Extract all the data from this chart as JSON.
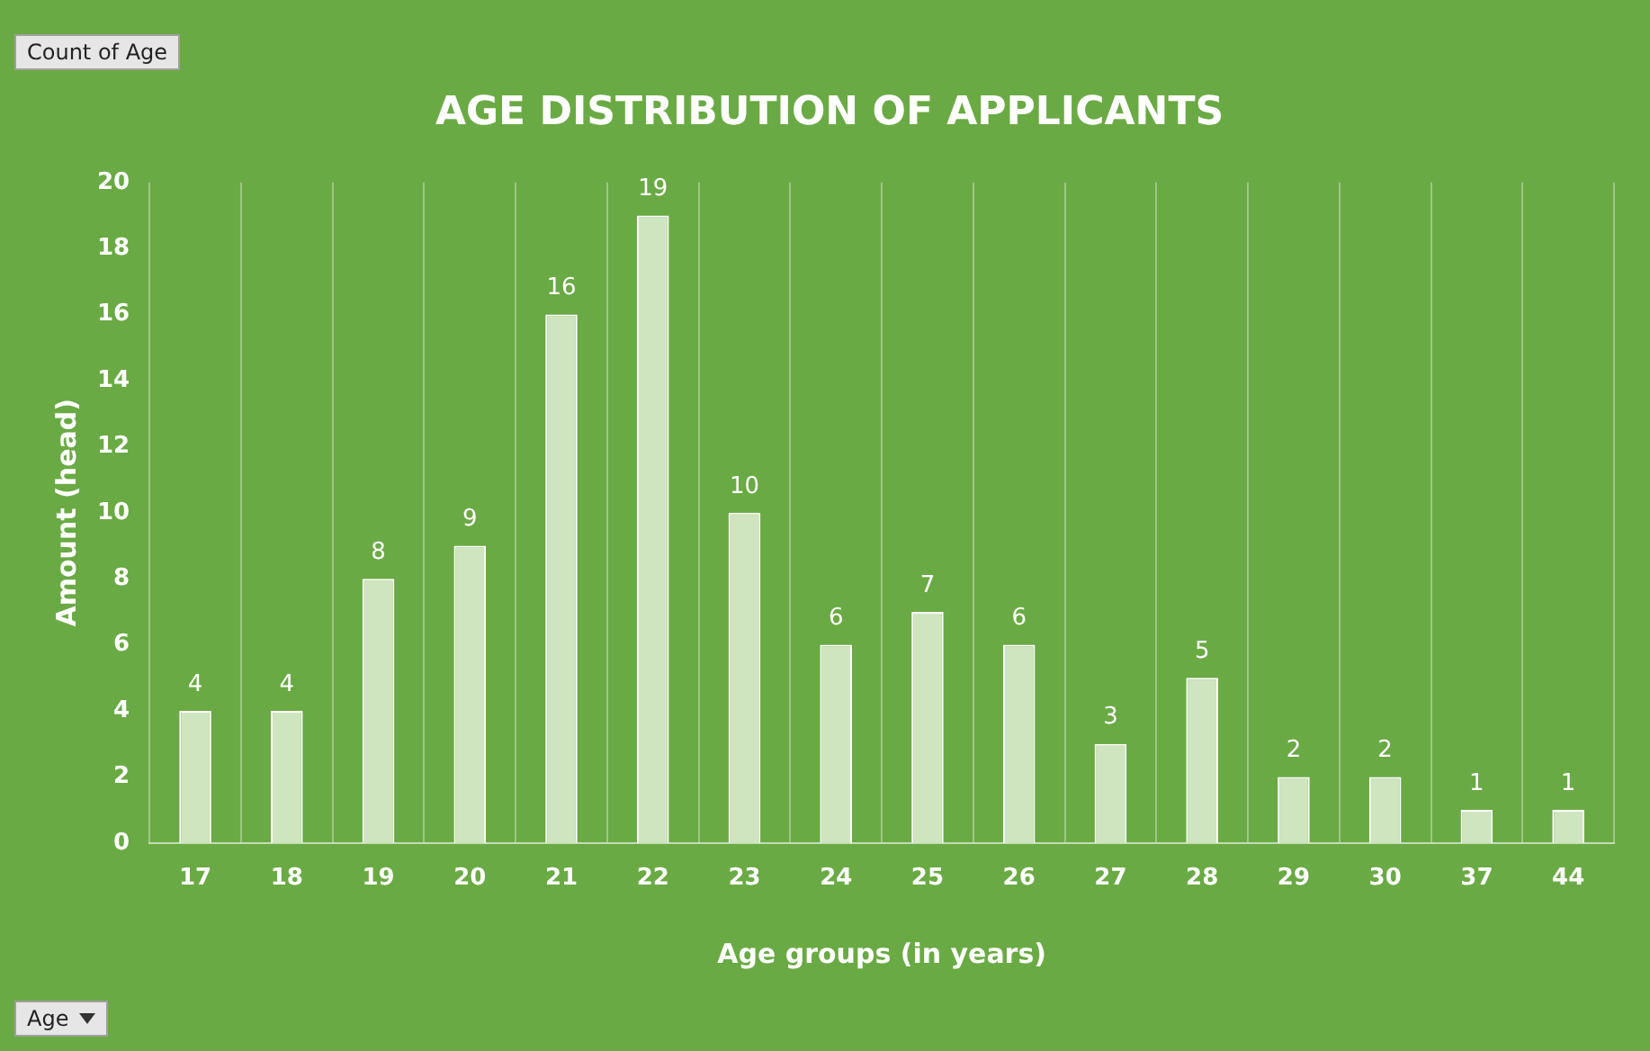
{
  "chart_data": {
    "type": "bar",
    "title": "AGE DISTRIBUTION OF APPLICANTS",
    "xlabel": "Age groups (in years)",
    "ylabel": "Amount (head)",
    "categories": [
      "17",
      "18",
      "19",
      "20",
      "21",
      "22",
      "23",
      "24",
      "25",
      "26",
      "27",
      "28",
      "29",
      "30",
      "37",
      "44"
    ],
    "values": [
      4,
      4,
      8,
      9,
      16,
      19,
      10,
      6,
      7,
      6,
      3,
      5,
      2,
      2,
      1,
      1
    ],
    "color": "#cfe5c0",
    "ylim": [
      0,
      20
    ],
    "yticks": [
      0,
      2,
      4,
      6,
      8,
      10,
      12,
      14,
      16,
      18,
      20
    ],
    "grid": "x",
    "data_labels": true,
    "legend": false,
    "annotations": [
      "Count of Age",
      "Age"
    ]
  }
}
